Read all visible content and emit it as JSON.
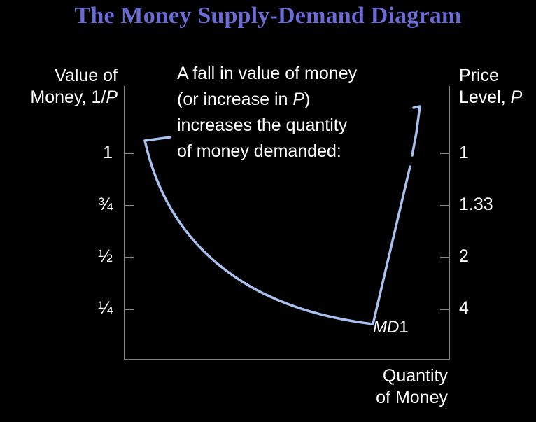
{
  "title": "The Money Supply-Demand Diagram",
  "left_axis": {
    "title_line1": "Value of",
    "title_line2_text": "Money, 1/",
    "title_line2_var": "P",
    "ticks": [
      "1",
      "¾",
      "½",
      "¼"
    ],
    "tick_values": [
      1,
      0.75,
      0.5,
      0.25
    ]
  },
  "right_axis": {
    "title_line1": "Price",
    "title_line2_text": "Level, ",
    "title_line2_var": "P",
    "ticks": [
      "1",
      "1.33",
      "2",
      "4"
    ]
  },
  "bottom_axis": {
    "title_line1": "Quantity",
    "title_line2": "of Money"
  },
  "annotation": {
    "line1": "A fall in value of money",
    "line2_pre": "(or increase in ",
    "line2_var": "P",
    "line2_post": ")",
    "line3": "increases the quantity",
    "line4": "of money demanded:"
  },
  "curve": {
    "label_var": "MD",
    "label_num": "1",
    "color": "#a9c1ee"
  },
  "colors": {
    "background": "#000000",
    "title": "#6b6bd6",
    "axis": "#cfcfcf",
    "text": "#ffffff"
  }
}
